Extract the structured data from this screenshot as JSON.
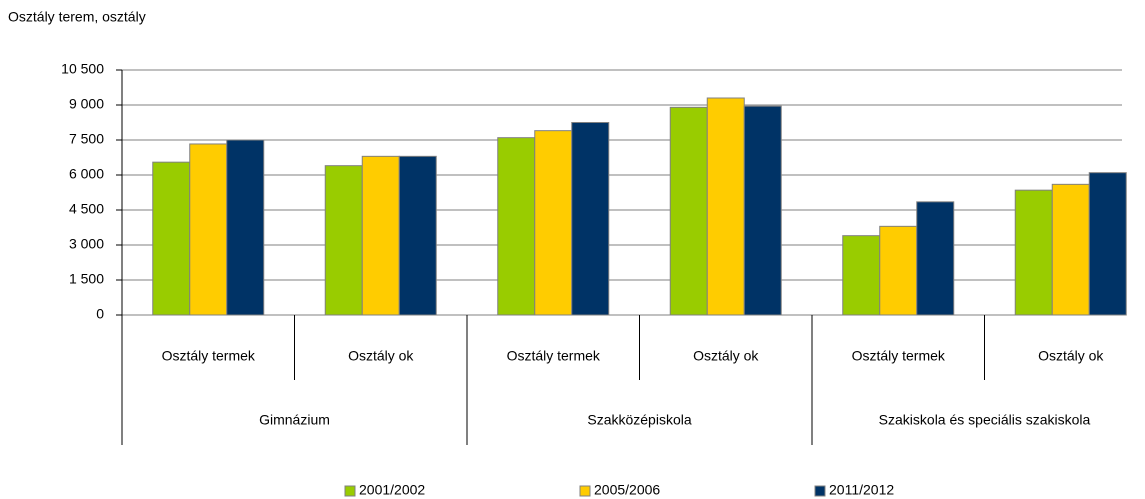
{
  "chart_data": {
    "type": "bar",
    "ylabel": "Osztály terem, osztály",
    "categories": [
      "Osztály termek",
      "Osztály ok",
      "Osztály termek",
      "Osztály ok",
      "Osztály termek",
      "Osztály ok"
    ],
    "groups": [
      "Gimnázium",
      "Szakközépiskola",
      "Szakiskola és  speciális szakiskola"
    ],
    "series": [
      {
        "name": "2001/2002",
        "color": "#99cc00",
        "values": [
          6550,
          6400,
          7600,
          8900,
          3400,
          5350
        ]
      },
      {
        "name": "2005/2006",
        "color": "#ffcc00",
        "values": [
          7330,
          6800,
          7900,
          9300,
          3800,
          5600
        ]
      },
      {
        "name": "2011/2012",
        "color": "#003366",
        "values": [
          7500,
          6800,
          8250,
          8950,
          4850,
          6100
        ]
      }
    ],
    "ylim": [
      0,
      10500
    ],
    "yticks": [
      0,
      {
        "value": 1500,
        "label": "1 500"
      },
      {
        "value": 3000,
        "label": "3 000"
      },
      {
        "value": 4500,
        "label": "4 500"
      },
      {
        "value": 6000,
        "label": "6 000"
      },
      {
        "value": 7500,
        "label": "7 500"
      },
      {
        "value": 9000,
        "label": "9 000"
      },
      {
        "value": 10500,
        "label": "10 500"
      }
    ],
    "grid": true,
    "legend": "bottom"
  }
}
